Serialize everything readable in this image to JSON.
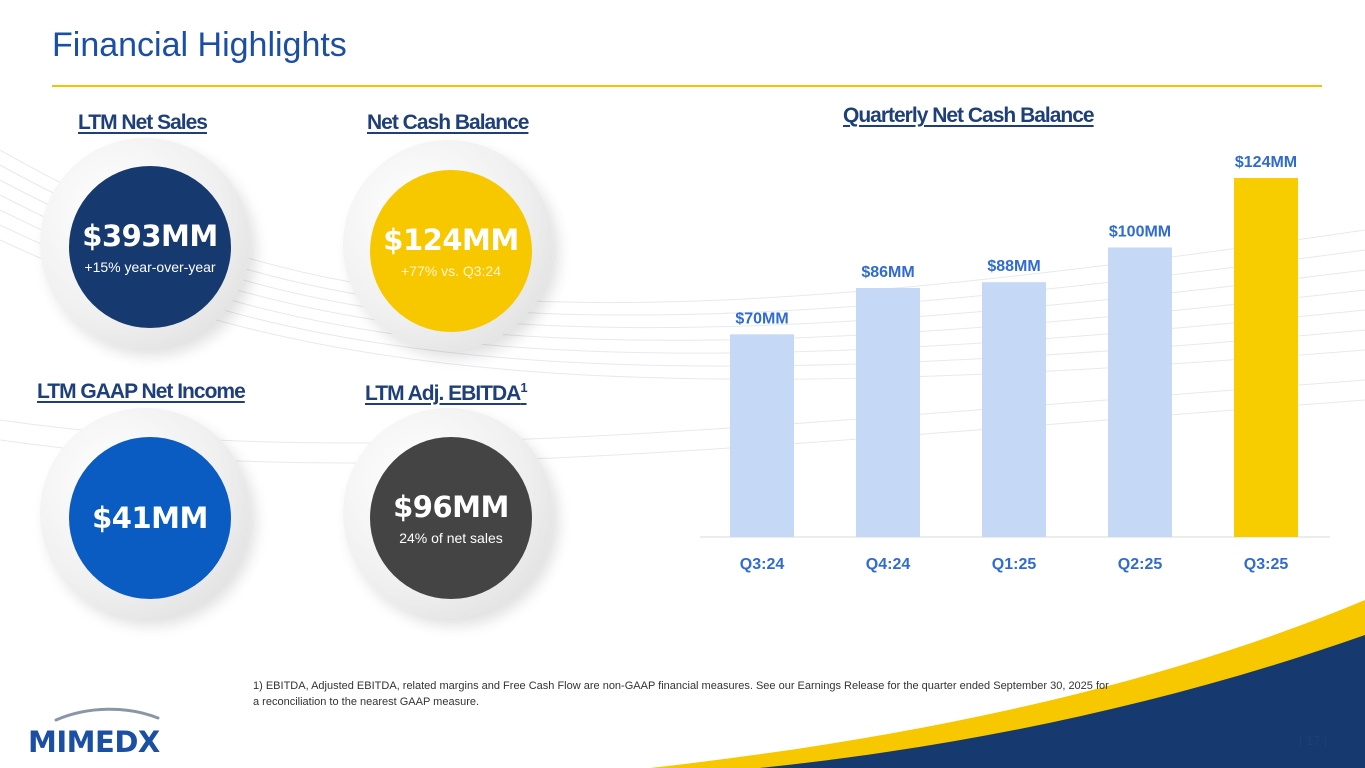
{
  "title": "Financial Highlights",
  "kpis": [
    {
      "label": "LTM Net Sales",
      "value": "$393MM",
      "sub": "+15% year-over-year",
      "color": "#163a70"
    },
    {
      "label": "Net Cash Balance",
      "value": "$124MM",
      "sub": "+77% vs. Q3:24",
      "color": "#f7c800"
    },
    {
      "label": "LTM GAAP Net Income",
      "value": "$41MM",
      "sub": "",
      "color": "#0a5cc2"
    },
    {
      "label": "LTM Adj. EBITDA",
      "label_sup": "1",
      "value": "$96MM",
      "sub": "24% of net sales",
      "color": "#444444"
    }
  ],
  "chart_data": {
    "type": "bar",
    "title": "Quarterly Net Cash Balance",
    "categories": [
      "Q3:24",
      "Q4:24",
      "Q1:25",
      "Q2:25",
      "Q3:25"
    ],
    "values": [
      70,
      86,
      88,
      100,
      124
    ],
    "data_labels": [
      "$70MM",
      "$86MM",
      "$88MM",
      "$100MM",
      "$124MM"
    ],
    "unit": "$MM",
    "ylim": [
      0,
      124
    ],
    "grid": false,
    "colors": [
      "#c5d8f5",
      "#c5d8f5",
      "#c5d8f5",
      "#c5d8f5",
      "#f7cd00"
    ],
    "label_color": "#2f6bd1"
  },
  "footnote": "1) EBITDA, Adjusted EBITDA, related margins and Free Cash Flow are non-GAAP financial measures. See our Earnings Release for the quarter ended September 30, 2025 for a reconciliation to the nearest GAAP measure.",
  "logo_text": "MIMEDX",
  "page_number": "| 17 |"
}
